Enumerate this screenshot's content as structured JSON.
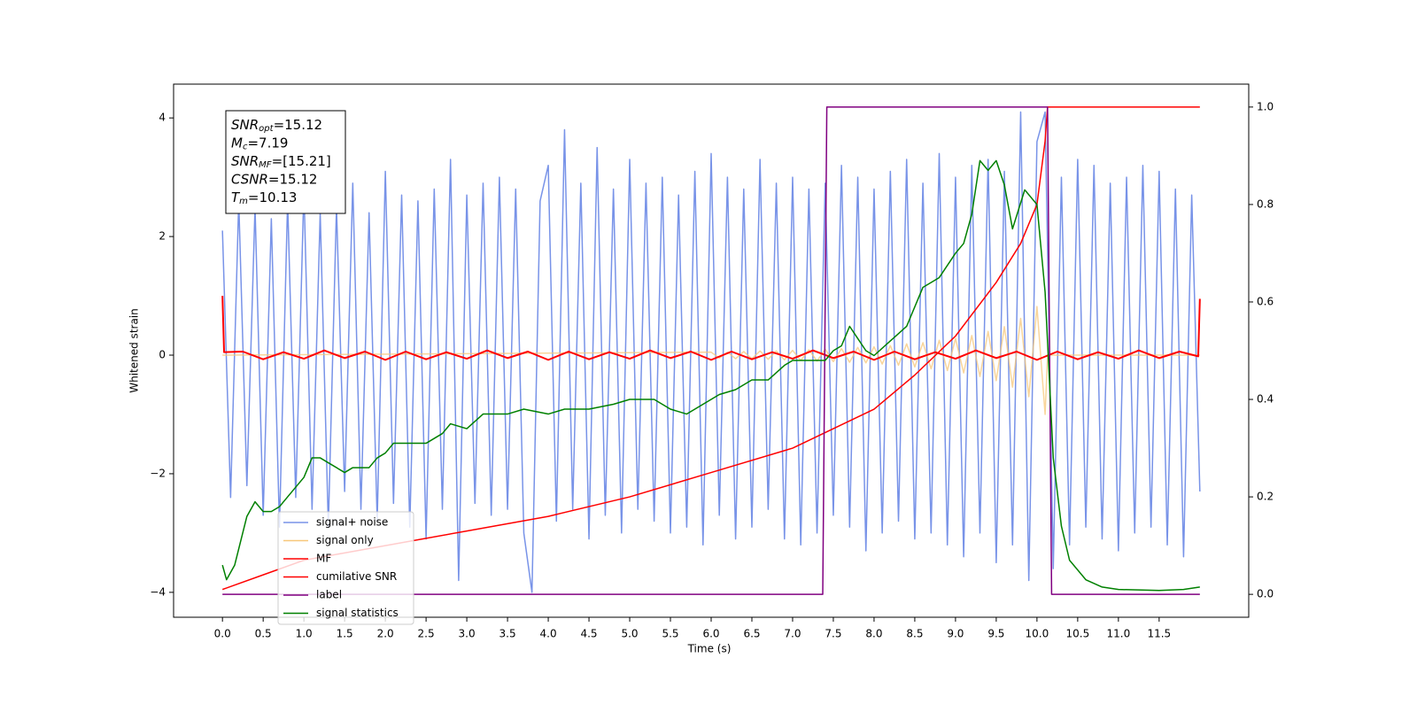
{
  "chart_data": {
    "type": "line",
    "xlabel": "Time (s)",
    "ylabel": "Whitened strain",
    "xlim": [
      -0.6,
      12.6
    ],
    "ylim": [
      -4.42,
      4.57
    ],
    "y2lim": [
      -0.047,
      1.047
    ],
    "xticks": [
      {
        "value": 0,
        "label": "0.0"
      },
      0.5,
      {
        "value": 1,
        "label": "1.0"
      },
      1.5,
      {
        "value": 2,
        "label": "2.0"
      },
      2.5,
      {
        "value": 3,
        "label": "3.0"
      },
      3.5,
      {
        "value": 4,
        "label": "4.0"
      },
      4.5,
      {
        "value": 5,
        "label": "5.0"
      },
      5.5,
      {
        "value": 6,
        "label": "6.0"
      },
      6.5,
      {
        "value": 7,
        "label": "7.0"
      },
      7.5,
      {
        "value": 8,
        "label": "8.0"
      },
      8.5,
      {
        "value": 9,
        "label": "9.0"
      },
      9.5,
      {
        "value": 10,
        "label": "10.0"
      },
      10.5,
      {
        "value": 11,
        "label": "11.0"
      },
      11.5
    ],
    "yticks": [
      {
        "value": -4,
        "label": "−4"
      },
      {
        "value": -2,
        "label": "−2"
      },
      0,
      2,
      4
    ],
    "y2ticks": [
      {
        "value": 0,
        "label": "0.0"
      },
      0.2,
      0.4,
      0.6,
      0.8,
      {
        "value": 1,
        "label": "1.0"
      }
    ],
    "legend": "lower left",
    "annotations": [
      {
        "main": "SNR",
        "sub": "opt",
        "rest": "=15.12"
      },
      {
        "main": "M",
        "sub": "c",
        "rest": "=7.19"
      },
      {
        "main": "SNR",
        "sub": "MF",
        "rest": "=[15.21]"
      },
      {
        "main": "CSNR",
        "sub": "",
        "rest": "=15.12"
      },
      {
        "main": "T",
        "sub": "m",
        "rest": "=10.13"
      }
    ],
    "series": [
      {
        "name": "signal+ noise",
        "color": "#7893e8",
        "axis": "y",
        "x": [
          0,
          0.1,
          0.2,
          0.3,
          0.4,
          0.5,
          0.6,
          0.7,
          0.8,
          0.9,
          1,
          1.1,
          1.2,
          1.3,
          1.4,
          1.5,
          1.6,
          1.7,
          1.8,
          1.9,
          2,
          2.1,
          2.2,
          2.3,
          2.4,
          2.5,
          2.6,
          2.7,
          2.8,
          2.9,
          3,
          3.1,
          3.2,
          3.3,
          3.4,
          3.5,
          3.6,
          3.7,
          3.8,
          3.9,
          4,
          4.1,
          4.2,
          4.3,
          4.4,
          4.5,
          4.6,
          4.7,
          4.8,
          4.9,
          5,
          5.1,
          5.2,
          5.3,
          5.4,
          5.5,
          5.6,
          5.7,
          5.8,
          5.9,
          6,
          6.1,
          6.2,
          6.3,
          6.4,
          6.5,
          6.6,
          6.7,
          6.8,
          6.9,
          7,
          7.1,
          7.2,
          7.3,
          7.4,
          7.5,
          7.6,
          7.7,
          7.8,
          7.9,
          8,
          8.1,
          8.2,
          8.3,
          8.4,
          8.5,
          8.6,
          8.7,
          8.8,
          8.9,
          9,
          9.1,
          9.2,
          9.3,
          9.4,
          9.5,
          9.6,
          9.7,
          9.8,
          9.9,
          10,
          10.1,
          10.2,
          10.3,
          10.4,
          10.5,
          10.6,
          10.7,
          10.8,
          10.9,
          11,
          11.1,
          11.2,
          11.3,
          11.4,
          11.5,
          11.6,
          11.7,
          11.8,
          11.9,
          12
        ],
        "values": [
          2.1,
          -2.4,
          2.6,
          -2.2,
          2.5,
          -2.7,
          2.3,
          -2.9,
          2.6,
          -2.4,
          2.8,
          -2.6,
          2.4,
          -2.9,
          2.5,
          -2.3,
          2.9,
          -2.6,
          2.4,
          -2.8,
          3.1,
          -2.5,
          2.7,
          -2.9,
          2.6,
          -3.1,
          2.8,
          -2.6,
          3.3,
          -3.8,
          2.7,
          -2.5,
          2.9,
          -2.7,
          3.0,
          -2.6,
          2.8,
          -3.0,
          -4.0,
          2.6,
          3.2,
          -2.8,
          3.8,
          -2.6,
          2.9,
          -3.1,
          3.5,
          -2.7,
          2.8,
          -3.0,
          3.3,
          -2.6,
          2.9,
          -2.8,
          3.0,
          -3.0,
          2.7,
          -2.9,
          3.1,
          -3.2,
          3.4,
          -2.7,
          3.0,
          -3.1,
          2.8,
          -2.9,
          3.3,
          -2.6,
          2.9,
          -3.1,
          3.0,
          -3.2,
          2.8,
          -3.0,
          2.9,
          -2.7,
          3.2,
          -2.9,
          3.0,
          -3.3,
          2.8,
          -3.0,
          3.1,
          -2.8,
          3.3,
          -3.1,
          2.9,
          -3.0,
          3.4,
          -3.2,
          3.0,
          -3.4,
          3.2,
          -3.0,
          3.3,
          -3.5,
          3.1,
          -3.2,
          4.1,
          -3.8,
          3.6,
          4.1,
          -3.6,
          3.0,
          -3.2,
          3.3,
          -2.9,
          3.2,
          -3.1,
          2.9,
          -3.3,
          3.0,
          -3.0,
          3.2,
          -2.9,
          3.1,
          -3.2,
          2.8,
          -3.4,
          2.7,
          -2.3
        ]
      },
      {
        "name": "signal only",
        "color": "#f7c77a",
        "axis": "y",
        "x": [
          0,
          6,
          6.1,
          6.2,
          6.3,
          6.4,
          6.5,
          6.6,
          6.7,
          6.8,
          6.9,
          7,
          7.1,
          7.2,
          7.3,
          7.4,
          7.5,
          7.6,
          7.7,
          7.8,
          7.9,
          8,
          8.1,
          8.2,
          8.3,
          8.4,
          8.5,
          8.6,
          8.7,
          8.8,
          8.9,
          9,
          9.1,
          9.2,
          9.3,
          9.4,
          9.5,
          9.6,
          9.7,
          9.8,
          9.9,
          10,
          10.1,
          10.13,
          12
        ],
        "values": [
          0,
          0.05,
          -0.05,
          0.05,
          -0.06,
          0.06,
          -0.06,
          0.07,
          -0.07,
          0.07,
          -0.08,
          0.08,
          -0.09,
          0.09,
          -0.1,
          0.1,
          -0.11,
          0.11,
          -0.12,
          0.13,
          -0.13,
          0.14,
          -0.15,
          0.16,
          -0.17,
          0.19,
          -0.2,
          0.21,
          -0.23,
          0.25,
          -0.26,
          0.28,
          -0.3,
          0.33,
          -0.36,
          0.4,
          -0.43,
          0.48,
          -0.54,
          0.62,
          -0.7,
          0.82,
          -1.0,
          0,
          0
        ]
      },
      {
        "name": "MF",
        "color": "#ff0000",
        "axis": "y",
        "x": [
          0,
          0.02,
          0.25,
          0.5,
          0.75,
          1,
          1.25,
          1.5,
          1.75,
          2,
          2.25,
          2.5,
          2.75,
          3,
          3.25,
          3.5,
          3.75,
          4,
          4.25,
          4.5,
          4.75,
          5,
          5.25,
          5.5,
          5.75,
          6,
          6.25,
          6.5,
          6.75,
          7,
          7.25,
          7.5,
          7.75,
          8,
          8.25,
          8.5,
          8.75,
          9,
          9.25,
          9.5,
          9.75,
          10,
          10.25,
          10.5,
          10.75,
          11,
          11.25,
          11.5,
          11.75,
          11.98,
          12
        ],
        "values": [
          1.0,
          0.05,
          0.06,
          -0.07,
          0.05,
          -0.06,
          0.08,
          -0.05,
          0.06,
          -0.08,
          0.06,
          -0.07,
          0.05,
          -0.06,
          0.08,
          -0.05,
          0.06,
          -0.08,
          0.06,
          -0.07,
          0.05,
          -0.06,
          0.08,
          -0.05,
          0.06,
          -0.08,
          0.06,
          -0.07,
          0.05,
          -0.06,
          0.08,
          -0.05,
          0.06,
          -0.08,
          0.06,
          -0.07,
          0.05,
          -0.06,
          0.08,
          -0.05,
          0.06,
          -0.08,
          0.06,
          -0.07,
          0.05,
          -0.06,
          0.08,
          -0.05,
          0.06,
          -0.02,
          0.95
        ]
      },
      {
        "name": "cumilative SNR",
        "color": "#ff0000",
        "axis": "y2",
        "x": [
          0,
          0.5,
          1,
          1.5,
          2,
          3,
          4,
          5,
          6,
          7,
          7.5,
          8,
          8.5,
          9,
          9.5,
          9.8,
          10,
          10.1,
          10.13,
          12
        ],
        "values": [
          0.01,
          0.04,
          0.07,
          0.085,
          0.1,
          0.13,
          0.16,
          0.2,
          0.25,
          0.3,
          0.34,
          0.38,
          0.45,
          0.53,
          0.64,
          0.72,
          0.8,
          0.93,
          1.0,
          1.0
        ]
      },
      {
        "name": "label",
        "color": "#800080",
        "axis": "y2",
        "x": [
          0,
          7.37,
          7.42,
          10.13,
          10.18,
          12
        ],
        "values": [
          0,
          0,
          1,
          1,
          0,
          0
        ]
      },
      {
        "name": "signal statistics",
        "color": "#008000",
        "axis": "y2",
        "x": [
          0,
          0.05,
          0.15,
          0.3,
          0.4,
          0.5,
          0.6,
          0.7,
          0.8,
          0.9,
          1,
          1.1,
          1.2,
          1.3,
          1.5,
          1.6,
          1.8,
          1.9,
          2,
          2.1,
          2.3,
          2.5,
          2.7,
          2.8,
          3,
          3.2,
          3.5,
          3.7,
          4,
          4.2,
          4.5,
          4.8,
          5,
          5.3,
          5.5,
          5.7,
          5.9,
          6.1,
          6.3,
          6.5,
          6.7,
          6.9,
          7,
          7.2,
          7.4,
          7.5,
          7.6,
          7.7,
          7.9,
          8,
          8.2,
          8.4,
          8.6,
          8.8,
          9,
          9.1,
          9.2,
          9.3,
          9.4,
          9.5,
          9.6,
          9.7,
          9.85,
          10,
          10.1,
          10.2,
          10.3,
          10.4,
          10.6,
          10.8,
          11,
          11.5,
          11.8,
          12
        ],
        "values": [
          0.06,
          0.03,
          0.06,
          0.16,
          0.19,
          0.17,
          0.17,
          0.18,
          0.2,
          0.22,
          0.24,
          0.28,
          0.28,
          0.27,
          0.25,
          0.26,
          0.26,
          0.28,
          0.29,
          0.31,
          0.31,
          0.31,
          0.33,
          0.35,
          0.34,
          0.37,
          0.37,
          0.38,
          0.37,
          0.38,
          0.38,
          0.39,
          0.4,
          0.4,
          0.38,
          0.37,
          0.39,
          0.41,
          0.42,
          0.44,
          0.44,
          0.47,
          0.48,
          0.48,
          0.48,
          0.5,
          0.51,
          0.55,
          0.5,
          0.49,
          0.52,
          0.55,
          0.63,
          0.65,
          0.7,
          0.72,
          0.78,
          0.89,
          0.87,
          0.89,
          0.84,
          0.75,
          0.83,
          0.8,
          0.62,
          0.28,
          0.14,
          0.07,
          0.03,
          0.015,
          0.01,
          0.008,
          0.01,
          0.015
        ]
      }
    ]
  }
}
